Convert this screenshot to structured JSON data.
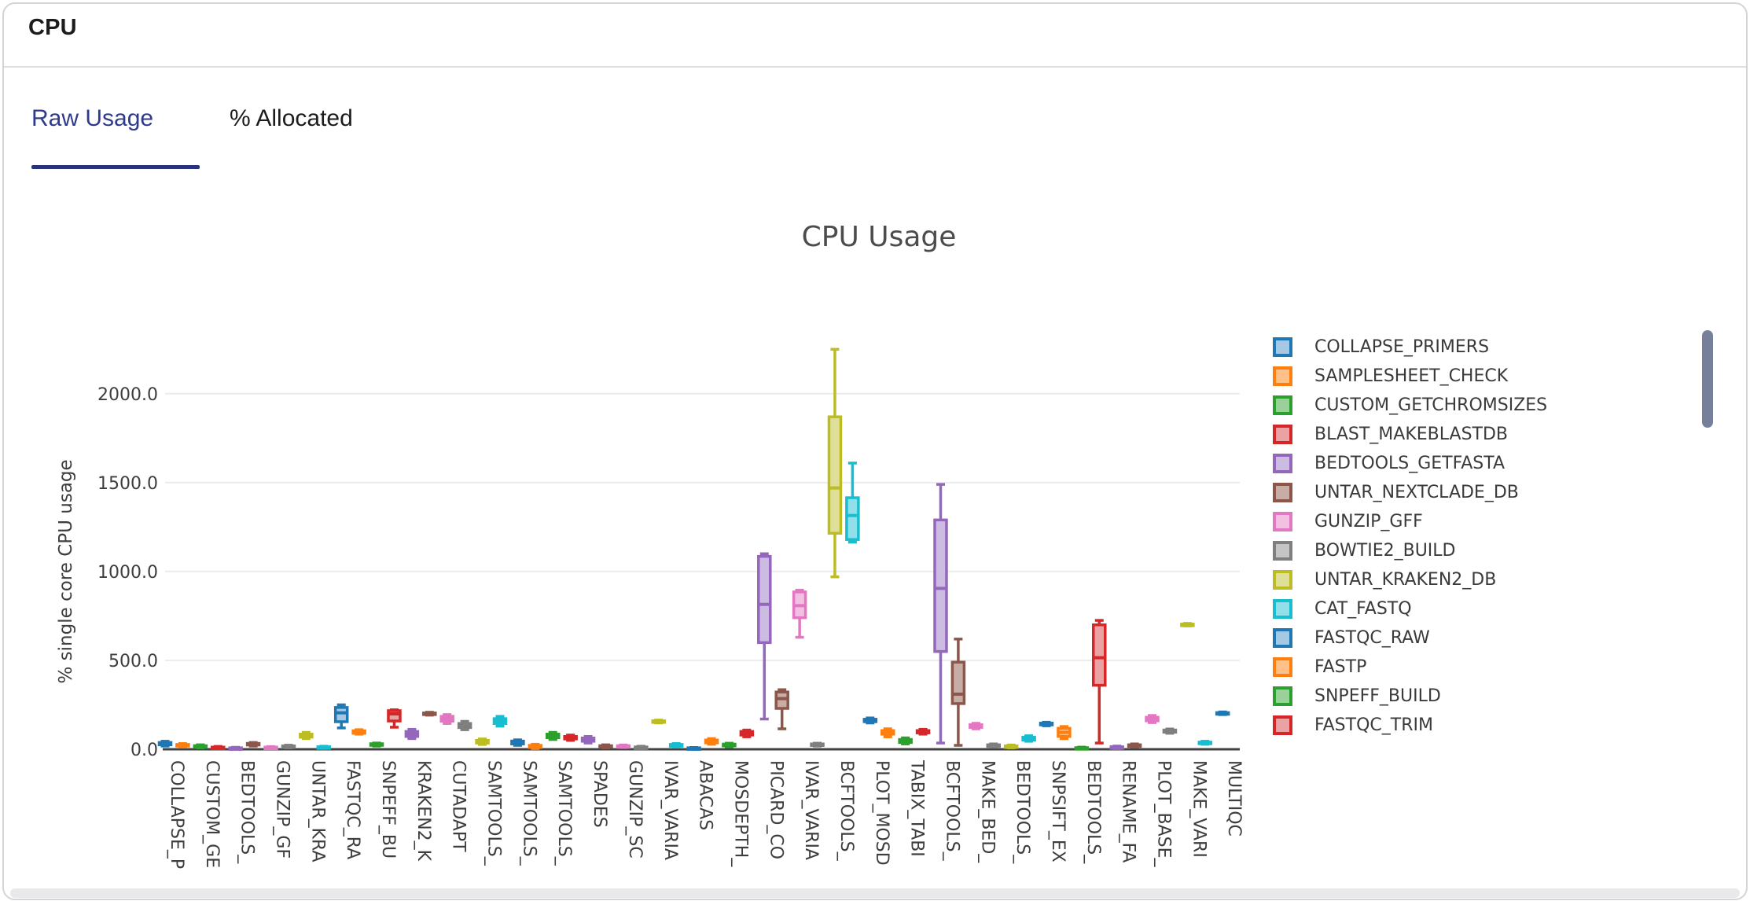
{
  "window": {
    "title": "CPU"
  },
  "tabs": [
    {
      "label": "Raw Usage",
      "active": true
    },
    {
      "label": "% Allocated",
      "active": false
    }
  ],
  "colors": {
    "tab_active_text": "#2e3a8c",
    "tab_underline": "#29337c",
    "tab_inactive_text": "#1c1c1e",
    "card_border": "#d5d5d7",
    "axis_line": "#424242",
    "grid_line": "#ececee",
    "tick_text": "#3e3e40",
    "chart_title_text": "#4c4c4e",
    "legend_text": "#3a3a3c",
    "scroll_thumb": "#76809a",
    "bottom_track": "#e9e9eb",
    "cycle_border": [
      "#1f77b4",
      "#ff7f0e",
      "#2ca02c",
      "#d62728",
      "#9467bd",
      "#8c564b",
      "#e377c2",
      "#7f7f7f",
      "#bcbd22",
      "#17becf"
    ],
    "cycle_fill": [
      "#a6c8e3",
      "#ffc08a",
      "#9ad09a",
      "#eba2a3",
      "#cdbce1",
      "#c8ada7",
      "#f2c0e3",
      "#c5c5c5",
      "#dfdf9a",
      "#93dfe9"
    ]
  },
  "chart_data": {
    "type": "box",
    "title": "CPU Usage",
    "ylabel": "% single core CPU usage",
    "xlabel": "",
    "grid": true,
    "legend_position": "right",
    "ylim": [
      0,
      2336
    ],
    "yticks": [
      {
        "label": "0.0",
        "value": 0
      },
      {
        "label": "500.0",
        "value": 500
      },
      {
        "label": "1000.0",
        "value": 1000
      },
      {
        "label": "1500.0",
        "value": 1500
      },
      {
        "label": "2000.0",
        "value": 2000
      }
    ],
    "x_tick_labels": [
      "COLLAPSE_P",
      "CUSTOM_GE",
      "BEDTOOLS_",
      "GUNZIP_GF",
      "UNTAR_KRA",
      "FASTQC_RA",
      "SNPEFF_BU",
      "KRAKEN2_K",
      "CUTADAPT",
      "SAMTOOLS_",
      "SAMTOOLS_",
      "SAMTOOLS_",
      "SPADES",
      "GUNZIP_SC",
      "IVAR_VARIA",
      "ABACAS",
      "MOSDEPTH_",
      "PICARD_CO",
      "IVAR_VARIA",
      "BCFTOOLS_",
      "PLOT_MOSD",
      "TABIX_TABI",
      "BCFTOOLS_",
      "MAKE_BED_",
      "BEDTOOLS_",
      "SNPSIFT_EX",
      "BEDTOOLS_",
      "RENAME_FA",
      "PLOT_BASE_",
      "MAKE_VARI",
      "MULTIQC"
    ],
    "legend_entries": [
      {
        "label": "COLLAPSE_PRIMERS",
        "color_index": 0
      },
      {
        "label": "SAMPLESHEET_CHECK",
        "color_index": 1
      },
      {
        "label": "CUSTOM_GETCHROMSIZES",
        "color_index": 2
      },
      {
        "label": "BLAST_MAKEBLASTDB",
        "color_index": 3
      },
      {
        "label": "BEDTOOLS_GETFASTA",
        "color_index": 4
      },
      {
        "label": "UNTAR_NEXTCLADE_DB",
        "color_index": 5
      },
      {
        "label": "GUNZIP_GFF",
        "color_index": 6
      },
      {
        "label": "BOWTIE2_BUILD",
        "color_index": 7
      },
      {
        "label": "UNTAR_KRAKEN2_DB",
        "color_index": 8
      },
      {
        "label": "CAT_FASTQ",
        "color_index": 9
      },
      {
        "label": "FASTQC_RAW",
        "color_index": 0
      },
      {
        "label": "FASTP",
        "color_index": 1
      },
      {
        "label": "SNPEFF_BUILD",
        "color_index": 2
      },
      {
        "label": "FASTQC_TRIM",
        "color_index": 3
      }
    ],
    "boxes": [
      {
        "low": 18,
        "q1": 25,
        "median": 30,
        "q3": 38,
        "high": 45,
        "color_index": 0
      },
      {
        "low": 12,
        "q1": 18,
        "median": 22,
        "q3": 27,
        "high": 32,
        "color_index": 1
      },
      {
        "low": 8,
        "q1": 12,
        "median": 16,
        "q3": 20,
        "high": 25,
        "color_index": 2
      },
      {
        "low": 3,
        "q1": 6,
        "median": 9,
        "q3": 12,
        "high": 16,
        "color_index": 3
      },
      {
        "low": 2,
        "q1": 4,
        "median": 6,
        "q3": 8,
        "high": 11,
        "color_index": 4
      },
      {
        "low": 18,
        "q1": 24,
        "median": 28,
        "q3": 33,
        "high": 38,
        "color_index": 5
      },
      {
        "low": 4,
        "q1": 7,
        "median": 9,
        "q3": 12,
        "high": 15,
        "color_index": 6
      },
      {
        "low": 8,
        "q1": 12,
        "median": 15,
        "q3": 19,
        "high": 23,
        "color_index": 7
      },
      {
        "low": 60,
        "q1": 68,
        "median": 76,
        "q3": 85,
        "high": 95,
        "color_index": 8
      },
      {
        "low": 5,
        "q1": 8,
        "median": 11,
        "q3": 14,
        "high": 17,
        "color_index": 9
      },
      {
        "low": 120,
        "q1": 155,
        "median": 205,
        "q3": 235,
        "high": 250,
        "color_index": 0
      },
      {
        "low": 85,
        "q1": 90,
        "median": 97,
        "q3": 104,
        "high": 110,
        "color_index": 1
      },
      {
        "low": 18,
        "q1": 22,
        "median": 27,
        "q3": 31,
        "high": 35,
        "color_index": 2
      },
      {
        "low": 124,
        "q1": 159,
        "median": 199,
        "q3": 217,
        "high": 222,
        "color_index": 3
      },
      {
        "low": 60,
        "q1": 72,
        "median": 85,
        "q3": 100,
        "high": 112,
        "color_index": 4
      },
      {
        "low": 192,
        "q1": 196,
        "median": 200,
        "q3": 204,
        "high": 208,
        "color_index": 5
      },
      {
        "low": 145,
        "q1": 158,
        "median": 172,
        "q3": 185,
        "high": 195,
        "color_index": 6
      },
      {
        "low": 110,
        "q1": 122,
        "median": 133,
        "q3": 145,
        "high": 157,
        "color_index": 7
      },
      {
        "low": 27,
        "q1": 35,
        "median": 43,
        "q3": 50,
        "high": 58,
        "color_index": 8
      },
      {
        "low": 130,
        "q1": 145,
        "median": 158,
        "q3": 172,
        "high": 185,
        "color_index": 9
      },
      {
        "low": 22,
        "q1": 30,
        "median": 38,
        "q3": 46,
        "high": 53,
        "color_index": 0
      },
      {
        "low": 4,
        "q1": 10,
        "median": 16,
        "q3": 22,
        "high": 28,
        "color_index": 1
      },
      {
        "low": 55,
        "q1": 65,
        "median": 75,
        "q3": 85,
        "high": 95,
        "color_index": 2
      },
      {
        "low": 50,
        "q1": 58,
        "median": 65,
        "q3": 72,
        "high": 80,
        "color_index": 3
      },
      {
        "low": 35,
        "q1": 45,
        "median": 54,
        "q3": 63,
        "high": 72,
        "color_index": 4
      },
      {
        "low": 8,
        "q1": 12,
        "median": 16,
        "q3": 20,
        "high": 25,
        "color_index": 5
      },
      {
        "low": 10,
        "q1": 13,
        "median": 16,
        "q3": 20,
        "high": 24,
        "color_index": 6
      },
      {
        "low": 4,
        "q1": 7,
        "median": 10,
        "q3": 13,
        "high": 17,
        "color_index": 7
      },
      {
        "low": 148,
        "q1": 152,
        "median": 156,
        "q3": 160,
        "high": 164,
        "color_index": 8
      },
      {
        "low": 12,
        "q1": 17,
        "median": 22,
        "q3": 27,
        "high": 32,
        "color_index": 9
      },
      {
        "low": 2,
        "q1": 4,
        "median": 6,
        "q3": 8,
        "high": 10,
        "color_index": 0
      },
      {
        "low": 28,
        "q1": 36,
        "median": 44,
        "q3": 52,
        "high": 60,
        "color_index": 1
      },
      {
        "low": 14,
        "q1": 19,
        "median": 24,
        "q3": 29,
        "high": 34,
        "color_index": 2
      },
      {
        "low": 70,
        "q1": 80,
        "median": 90,
        "q3": 100,
        "high": 108,
        "color_index": 3
      },
      {
        "low": 170,
        "q1": 600,
        "median": 815,
        "q3": 1085,
        "high": 1100,
        "color_index": 4
      },
      {
        "low": 115,
        "q1": 230,
        "median": 285,
        "q3": 322,
        "high": 335,
        "color_index": 5
      },
      {
        "low": 630,
        "q1": 740,
        "median": 808,
        "q3": 885,
        "high": 895,
        "color_index": 6
      },
      {
        "low": 18,
        "q1": 22,
        "median": 26,
        "q3": 30,
        "high": 34,
        "color_index": 7
      },
      {
        "low": 970,
        "q1": 1215,
        "median": 1470,
        "q3": 1870,
        "high": 2250,
        "color_index": 8
      },
      {
        "low": 1165,
        "q1": 1180,
        "median": 1315,
        "q3": 1415,
        "high": 1610,
        "color_index": 9
      },
      {
        "low": 148,
        "q1": 155,
        "median": 162,
        "q3": 169,
        "high": 176,
        "color_index": 0
      },
      {
        "low": 70,
        "q1": 85,
        "median": 95,
        "q3": 105,
        "high": 115,
        "color_index": 1
      },
      {
        "low": 30,
        "q1": 38,
        "median": 46,
        "q3": 55,
        "high": 64,
        "color_index": 2
      },
      {
        "low": 85,
        "q1": 92,
        "median": 98,
        "q3": 105,
        "high": 112,
        "color_index": 3
      },
      {
        "low": 35,
        "q1": 550,
        "median": 905,
        "q3": 1290,
        "high": 1490,
        "color_index": 4
      },
      {
        "low": 22,
        "q1": 257,
        "median": 310,
        "q3": 490,
        "high": 620,
        "color_index": 5
      },
      {
        "low": 115,
        "q1": 123,
        "median": 130,
        "q3": 138,
        "high": 146,
        "color_index": 6
      },
      {
        "low": 12,
        "q1": 16,
        "median": 20,
        "q3": 25,
        "high": 30,
        "color_index": 7
      },
      {
        "low": 8,
        "q1": 12,
        "median": 15,
        "q3": 19,
        "high": 24,
        "color_index": 8
      },
      {
        "low": 45,
        "q1": 52,
        "median": 60,
        "q3": 68,
        "high": 76,
        "color_index": 9
      },
      {
        "low": 132,
        "q1": 137,
        "median": 142,
        "q3": 147,
        "high": 152,
        "color_index": 0
      },
      {
        "low": 60,
        "q1": 72,
        "median": 95,
        "q3": 118,
        "high": 128,
        "color_index": 1
      },
      {
        "low": 2,
        "q1": 4,
        "median": 6,
        "q3": 9,
        "high": 12,
        "color_index": 2
      },
      {
        "low": 35,
        "q1": 360,
        "median": 515,
        "q3": 700,
        "high": 725,
        "color_index": 3
      },
      {
        "low": 4,
        "q1": 7,
        "median": 10,
        "q3": 14,
        "high": 18,
        "color_index": 4
      },
      {
        "low": 12,
        "q1": 16,
        "median": 20,
        "q3": 25,
        "high": 30,
        "color_index": 5
      },
      {
        "low": 150,
        "q1": 160,
        "median": 170,
        "q3": 180,
        "high": 190,
        "color_index": 6
      },
      {
        "low": 90,
        "q1": 96,
        "median": 102,
        "q3": 108,
        "high": 114,
        "color_index": 7
      },
      {
        "low": 694,
        "q1": 698,
        "median": 701,
        "q3": 704,
        "high": 708,
        "color_index": 8
      },
      {
        "low": 28,
        "q1": 32,
        "median": 36,
        "q3": 40,
        "high": 45,
        "color_index": 9
      },
      {
        "low": 195,
        "q1": 199,
        "median": 202,
        "q3": 206,
        "high": 210,
        "color_index": 0
      }
    ]
  }
}
